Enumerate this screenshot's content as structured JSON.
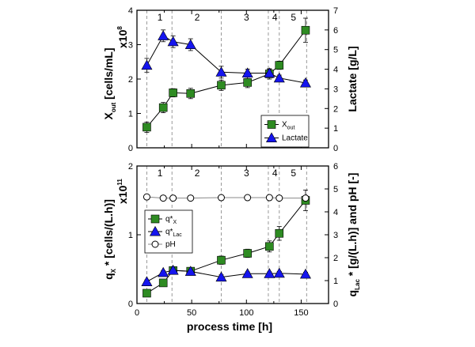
{
  "colors": {
    "green": "#2e8b22",
    "blue": "#1515ee",
    "dash": "#999999",
    "axis": "#000000",
    "open": "#ffffff"
  },
  "x_axis": {
    "label": "process time [h]",
    "ticks": [
      "0",
      "50",
      "100",
      "150"
    ],
    "xlim": [
      0,
      175
    ]
  },
  "chart_data": [
    {
      "type": "line",
      "panel": "top",
      "xlabel": "process time [h]",
      "ylabel_left": {
        "main": "X",
        "sub": "out",
        "rest": " [cells/mL]",
        "factor": "x10",
        "factor_exp": "8"
      },
      "ylabel_right": "Lactate [g/L]",
      "ylim_left": [
        0,
        4
      ],
      "ylim_right": [
        0,
        7
      ],
      "yticks_left": [
        "0",
        "1",
        "2",
        "3",
        "4"
      ],
      "yticks_right": [
        "0",
        "1",
        "2",
        "3",
        "4",
        "5",
        "6",
        "7"
      ],
      "phase_lines": [
        9,
        32,
        77,
        120,
        130,
        155
      ],
      "phase_labels": [
        "1",
        "2",
        "3",
        "4",
        "5"
      ],
      "phase_label_x": [
        21,
        55,
        100,
        126,
        143
      ],
      "series": [
        {
          "name": "X_out",
          "legend_main": "X",
          "legend_sub": "out",
          "axis": "left",
          "marker": "square",
          "color": "#2e8b22",
          "x": [
            9,
            24,
            33,
            49,
            77,
            101,
            121,
            130,
            154
          ],
          "y": [
            0.6,
            1.17,
            1.6,
            1.58,
            1.82,
            1.9,
            2.15,
            2.4,
            3.42
          ],
          "err": [
            0.15,
            0.15,
            0.12,
            0.15,
            0.15,
            0.15,
            0.15,
            0.12,
            0.35
          ]
        },
        {
          "name": "Lactate",
          "legend_main": "Lactate",
          "legend_sub": "",
          "axis": "right",
          "marker": "triangle",
          "color": "#1515ee",
          "x": [
            9,
            24,
            33,
            49,
            77,
            101,
            121,
            130,
            154
          ],
          "y": [
            4.2,
            5.7,
            5.4,
            5.25,
            3.85,
            3.8,
            3.8,
            3.55,
            3.3
          ],
          "err": [
            0.35,
            0.3,
            0.3,
            0.3,
            0.3,
            0.2,
            0.2,
            0.15,
            0.15
          ]
        }
      ],
      "legend": "center-right"
    },
    {
      "type": "line",
      "panel": "bottom",
      "xlabel": "process time [h]",
      "ylabel_left": {
        "main": "q",
        "sub": "X",
        "rest": " * [cells/(L.h)]",
        "factor": "x10",
        "factor_exp": "11"
      },
      "ylabel_right": {
        "main": "q",
        "sub": "Lac",
        "rest": " * [g/(L.h)] and pH [-]"
      },
      "ylim_left": [
        0,
        2
      ],
      "ylim_right": [
        0,
        6
      ],
      "yticks_left": [
        "0",
        "1",
        "2"
      ],
      "yticks_right": [
        "0",
        "1",
        "2",
        "3",
        "4",
        "5",
        "6"
      ],
      "phase_lines": [
        9,
        32,
        77,
        120,
        130,
        155
      ],
      "phase_labels": [
        "1",
        "2",
        "3",
        "4",
        "5"
      ],
      "phase_label_x": [
        21,
        55,
        100,
        126,
        143
      ],
      "series": [
        {
          "name": "q*X",
          "legend_main": "q*",
          "legend_sub": "X",
          "axis": "left",
          "marker": "square",
          "color": "#2e8b22",
          "x": [
            9,
            24,
            33,
            49,
            77,
            101,
            121,
            130,
            154
          ],
          "y": [
            0.15,
            0.3,
            0.48,
            0.47,
            0.63,
            0.73,
            0.83,
            1.02,
            1.5
          ],
          "err": [
            0.04,
            0.04,
            0.05,
            0.05,
            0.06,
            0.06,
            0.08,
            0.1,
            0.15
          ]
        },
        {
          "name": "q*Lac",
          "legend_main": "q*",
          "legend_sub": "Lac",
          "axis": "right",
          "marker": "triangle",
          "color": "#1515ee",
          "x": [
            9,
            24,
            33,
            49,
            77,
            101,
            121,
            130,
            154
          ],
          "y": [
            0.95,
            1.35,
            1.45,
            1.4,
            1.15,
            1.3,
            1.3,
            1.32,
            1.28
          ],
          "err": [
            0.08,
            0.08,
            0.1,
            0.08,
            0.1,
            0.08,
            0.08,
            0.08,
            0.08
          ]
        },
        {
          "name": "pH",
          "legend_main": "pH",
          "legend_sub": "",
          "axis": "right",
          "marker": "circle-open",
          "color": "#000000",
          "x": [
            9,
            24,
            33,
            49,
            77,
            101,
            121,
            130,
            154
          ],
          "y": [
            4.65,
            4.6,
            4.6,
            4.6,
            4.62,
            4.62,
            4.62,
            4.6,
            4.6
          ],
          "err": [
            0,
            0,
            0,
            0,
            0,
            0,
            0,
            0,
            0
          ]
        }
      ],
      "legend": "center-left"
    }
  ]
}
